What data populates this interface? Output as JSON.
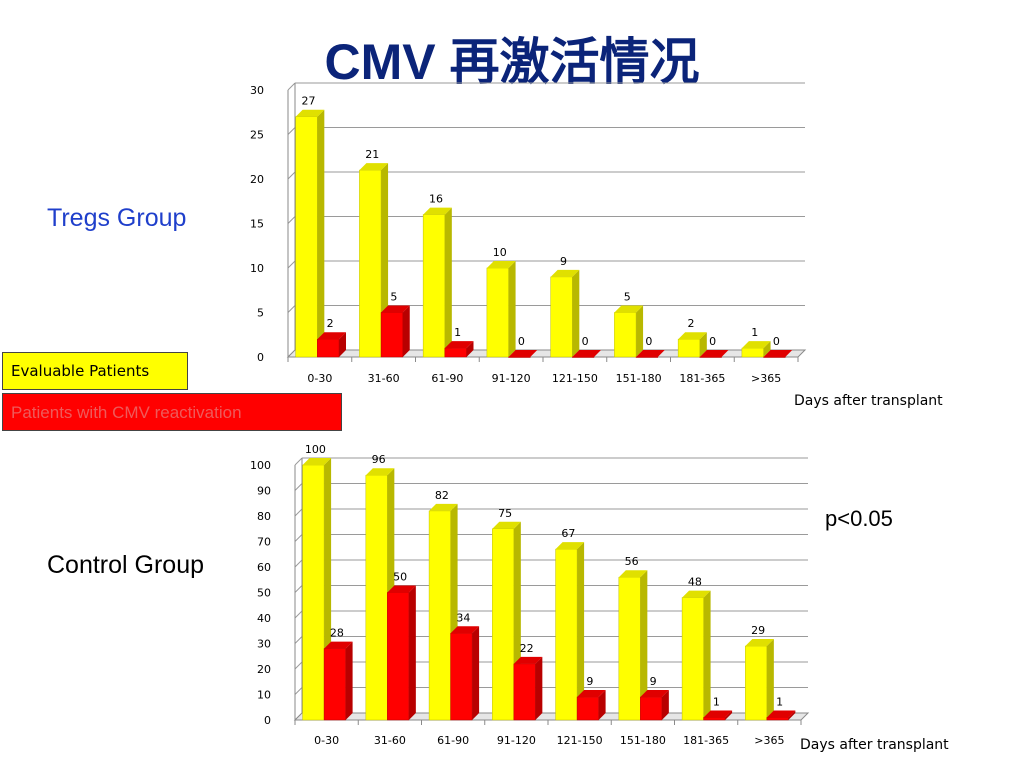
{
  "title": "CMV 再激活情况",
  "legend": {
    "evaluable": "Evaluable Patients",
    "reactivation": "Patients with CMV reactivation"
  },
  "colors": {
    "evaluable": "#ffff00",
    "reactivation": "#ff0000",
    "title": "#0b2479",
    "tregs_label": "#1f3fcb"
  },
  "p_value": "p<0.05",
  "chart_data": [
    {
      "type": "bar",
      "group_label": "Tregs Group",
      "xlabel": "Days after transplant",
      "ylim": [
        0,
        30
      ],
      "yticks": [
        0,
        5,
        10,
        15,
        20,
        25,
        30
      ],
      "categories": [
        "0-30",
        "31-60",
        "61-90",
        "91-120",
        "121-150",
        "151-180",
        "181-365",
        ">365"
      ],
      "series": [
        {
          "name": "Evaluable Patients",
          "values": [
            27,
            21,
            16,
            10,
            9,
            5,
            2,
            1
          ]
        },
        {
          "name": "Patients with CMV reactivation",
          "values": [
            2,
            5,
            1,
            0,
            0,
            0,
            0,
            0
          ]
        }
      ],
      "grid": true
    },
    {
      "type": "bar",
      "group_label": "Control Group",
      "xlabel": "Days after transplant",
      "ylim": [
        0,
        100
      ],
      "yticks": [
        0,
        10,
        20,
        30,
        40,
        50,
        60,
        70,
        80,
        90,
        100
      ],
      "categories": [
        "0-30",
        "31-60",
        "61-90",
        "91-120",
        "121-150",
        "151-180",
        "181-365",
        ">365"
      ],
      "series": [
        {
          "name": "Evaluable Patients",
          "values": [
            100,
            96,
            82,
            75,
            67,
            56,
            48,
            29
          ]
        },
        {
          "name": "Patients with CMV reactivation",
          "values": [
            28,
            50,
            34,
            22,
            9,
            9,
            1,
            1
          ]
        }
      ],
      "grid": true
    }
  ]
}
